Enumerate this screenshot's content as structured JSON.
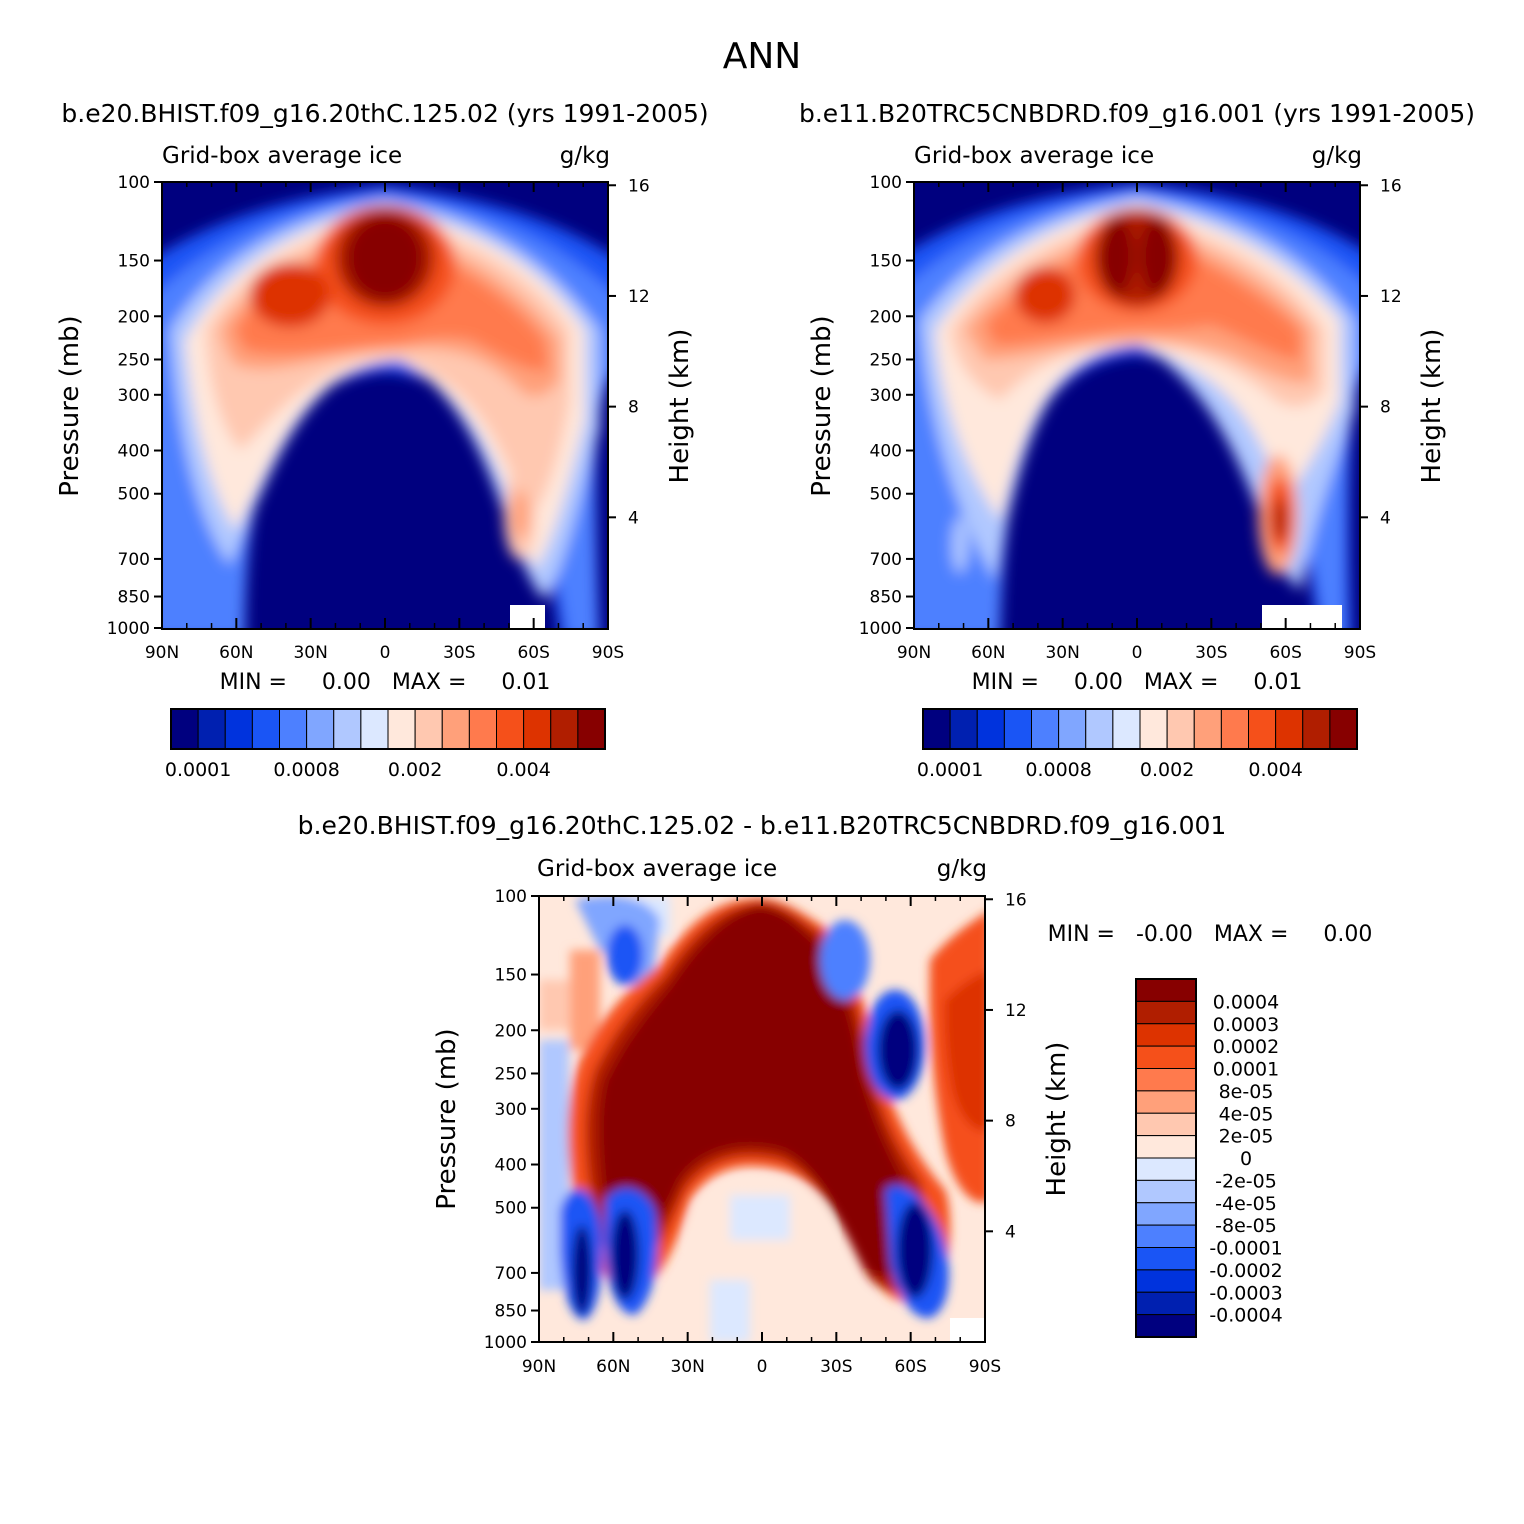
{
  "figure_title": "ANN",
  "colors": {
    "plot_scale": [
      "#00007f",
      "#0020b0",
      "#0033dd",
      "#1a55f5",
      "#4d80ff",
      "#80a6ff",
      "#b0c8ff",
      "#dce8ff",
      "#ffe8dc",
      "#ffc8b0",
      "#ffa07a",
      "#ff7a4d",
      "#f5501a",
      "#dd3300",
      "#b01e00",
      "#870000"
    ],
    "diff_scale": [
      "#00007f",
      "#0020b0",
      "#0033dd",
      "#1a55f5",
      "#4d80ff",
      "#80a6ff",
      "#b0c8ff",
      "#dce8ff",
      "#ffe8dc",
      "#ffc8b0",
      "#ffa07a",
      "#ff7a4d",
      "#f5501a",
      "#dd3300",
      "#b01e00",
      "#870000"
    ]
  },
  "chart_data": [
    {
      "type": "heatmap",
      "title": "b.e20.BHIST.f09_g16.20thC.125.02 (yrs 1991-2005)",
      "left_string": "Grid-box average ice",
      "right_string": "g/kg",
      "ylabel": "Pressure (mb)",
      "ylabel_right": "Height (km)",
      "x_ticks": [
        "90N",
        "60N",
        "30N",
        "0",
        "30S",
        "60S",
        "90S"
      ],
      "y_ticks": [
        "100",
        "150",
        "200",
        "250",
        "300",
        "400",
        "500",
        "700",
        "850",
        "1000"
      ],
      "y_ticks_right": [
        "16",
        "12",
        "8",
        "4"
      ],
      "min_max": "MIN =     0.00   MAX =     0.01",
      "colorbar_labels": [
        "0.0001",
        "0.0008",
        "0.002",
        "0.004"
      ],
      "ylim": [
        1000,
        100
      ],
      "xlim": [
        90,
        -90
      ]
    },
    {
      "type": "heatmap",
      "title": "b.e11.B20TRC5CNBDRD.f09_g16.001 (yrs 1991-2005)",
      "left_string": "Grid-box average ice",
      "right_string": "g/kg",
      "ylabel": "Pressure (mb)",
      "ylabel_right": "Height (km)",
      "x_ticks": [
        "90N",
        "60N",
        "30N",
        "0",
        "30S",
        "60S",
        "90S"
      ],
      "y_ticks": [
        "100",
        "150",
        "200",
        "250",
        "300",
        "400",
        "500",
        "700",
        "850",
        "1000"
      ],
      "y_ticks_right": [
        "16",
        "12",
        "8",
        "4"
      ],
      "min_max": "MIN =     0.00   MAX =     0.01",
      "colorbar_labels": [
        "0.0001",
        "0.0008",
        "0.002",
        "0.004"
      ],
      "ylim": [
        1000,
        100
      ],
      "xlim": [
        90,
        -90
      ]
    },
    {
      "type": "heatmap",
      "title": "b.e20.BHIST.f09_g16.20thC.125.02 - b.e11.B20TRC5CNBDRD.f09_g16.001",
      "left_string": "Grid-box average ice",
      "right_string": "g/kg",
      "ylabel": "Pressure (mb)",
      "ylabel_right": "Height (km)",
      "x_ticks": [
        "90N",
        "60N",
        "30N",
        "0",
        "30S",
        "60S",
        "90S"
      ],
      "y_ticks": [
        "100",
        "150",
        "200",
        "250",
        "300",
        "400",
        "500",
        "700",
        "850",
        "1000"
      ],
      "y_ticks_right": [
        "16",
        "12",
        "8",
        "4"
      ],
      "min_max": "MIN =   -0.00   MAX =     0.00",
      "colorbar_labels": [
        "0.0004",
        "0.0003",
        "0.0002",
        "0.0001",
        "8e-05",
        "4e-05",
        "2e-05",
        "0",
        "-2e-05",
        "-4e-05",
        "-8e-05",
        "-0.0001",
        "-0.0002",
        "-0.0003",
        "-0.0004"
      ],
      "ylim": [
        1000,
        100
      ],
      "xlim": [
        90,
        -90
      ]
    }
  ]
}
